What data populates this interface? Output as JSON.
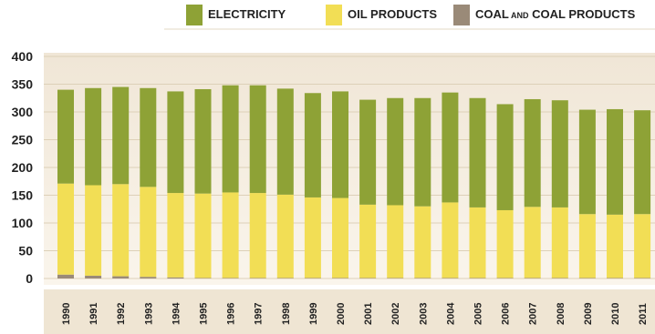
{
  "chart_data": {
    "type": "bar",
    "stacked": true,
    "categories": [
      "1990",
      "1991",
      "1992",
      "1993",
      "1994",
      "1995",
      "1996",
      "1997",
      "1998",
      "1999",
      "2000",
      "2001",
      "2002",
      "2003",
      "2004",
      "2005",
      "2006",
      "2007",
      "2008",
      "2009",
      "2010",
      "2011"
    ],
    "series": [
      {
        "name": "COAL AND COAL PRODUCTS",
        "color": "#9a8a78",
        "values": [
          7,
          5,
          4,
          3,
          2,
          1,
          1,
          1,
          1,
          1,
          1,
          1,
          1,
          1,
          1,
          1,
          1,
          1,
          1,
          1,
          1,
          1
        ]
      },
      {
        "name": "OIL PRODUCTS",
        "color": "#f2de55",
        "values": [
          164,
          163,
          166,
          162,
          152,
          152,
          154,
          153,
          150,
          145,
          144,
          132,
          131,
          129,
          136,
          127,
          122,
          128,
          127,
          115,
          114,
          115
        ]
      },
      {
        "name": "ELECTRICITY",
        "color": "#8ea236",
        "values": [
          169,
          175,
          175,
          178,
          183,
          188,
          193,
          194,
          191,
          188,
          192,
          189,
          193,
          195,
          198,
          197,
          191,
          194,
          193,
          188,
          190,
          187
        ]
      }
    ],
    "legend_order": [
      "ELECTRICITY",
      "OIL PRODUCTS",
      "COAL AND COAL PRODUCTS"
    ],
    "legend_small_word": "AND",
    "yticks": [
      "0",
      "50",
      "100",
      "150",
      "200",
      "250",
      "300",
      "350",
      "400"
    ],
    "ylim": [
      0,
      400
    ],
    "grid": true,
    "legend_position": "top-right",
    "title": "",
    "xlabel": "",
    "ylabel": ""
  }
}
